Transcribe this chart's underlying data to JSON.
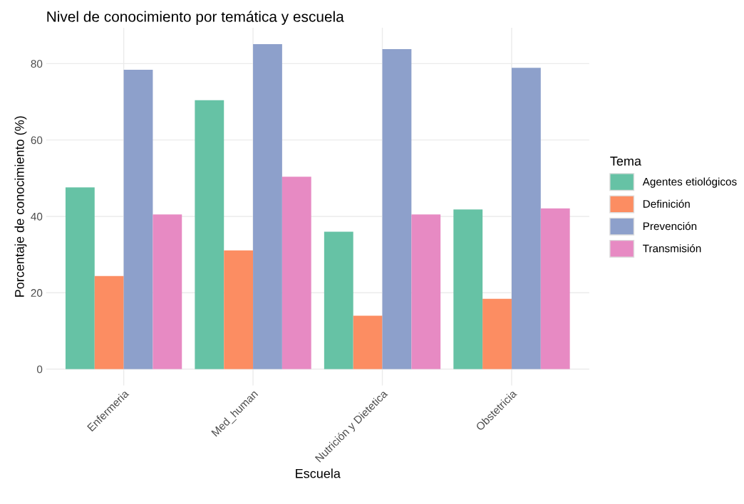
{
  "chart_data": {
    "type": "bar",
    "title": "Nivel de conocimiento por temática y escuela",
    "xlabel": "Escuela",
    "ylabel": "Porcentaje de conocimiento (%)",
    "legend_title": "Tema",
    "legend": "right",
    "grid": true,
    "categories": [
      "Enfermeria",
      "Med_human",
      "Nutrición y Dietetica",
      "Obstetricia"
    ],
    "ylim": [
      -4.3,
      89.4
    ],
    "yticks": [
      0,
      20,
      40,
      60,
      80
    ],
    "series": [
      {
        "name": "Agentes etiológicos",
        "color": "#66c2a5",
        "values": [
          47.6,
          70.4,
          36.0,
          41.8
        ]
      },
      {
        "name": "Definición",
        "color": "#fc8d62",
        "values": [
          24.4,
          31.1,
          14.0,
          18.4
        ]
      },
      {
        "name": "Prevención",
        "color": "#8da0cb",
        "values": [
          78.4,
          85.1,
          83.8,
          78.9
        ]
      },
      {
        "name": "Transmisión",
        "color": "#e78ac3",
        "values": [
          40.5,
          50.4,
          40.5,
          42.1
        ]
      }
    ]
  }
}
